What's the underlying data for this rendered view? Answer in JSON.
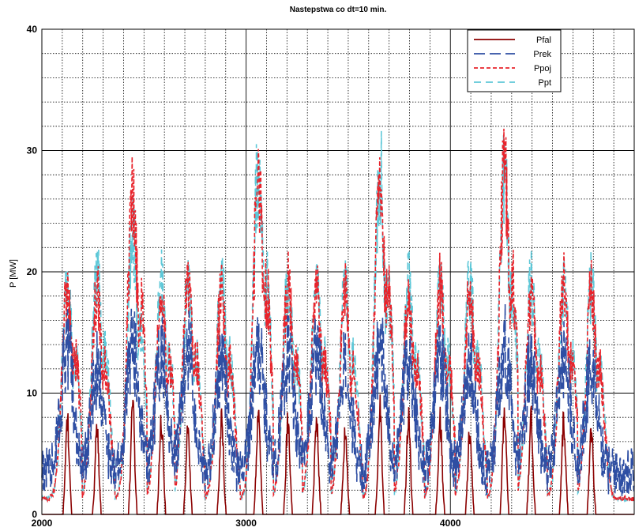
{
  "chart_data": {
    "type": "line",
    "title": "Nastepstwa co dt=10 min.",
    "xlabel": "",
    "ylabel": "P [MW]",
    "xlim": [
      2000,
      4900
    ],
    "ylim": [
      0,
      40
    ],
    "x_ticks": [
      "2000",
      "3000",
      "4000"
    ],
    "y_ticks": [
      "0",
      "10",
      "20",
      "30",
      "40"
    ],
    "grid": true,
    "legend_position": "top-right",
    "day_peaks": {
      "x": [
        2125,
        2270,
        2445,
        2585,
        2715,
        2880,
        3060,
        3205,
        3345,
        3485,
        3655,
        3795,
        3950,
        4095,
        4265,
        4395,
        4555,
        4690
      ],
      "Pfal": [
        9,
        8,
        10,
        9,
        8,
        9,
        10,
        9,
        9,
        8,
        10,
        9,
        9,
        8,
        10,
        9,
        9,
        8
      ],
      "Prek": [
        16,
        14,
        16,
        15,
        16,
        14,
        16,
        15,
        15,
        14,
        16,
        15,
        15,
        14,
        16,
        14,
        15,
        14
      ],
      "Ppoj": [
        22,
        21,
        30,
        21,
        22,
        21,
        32,
        22,
        21,
        21,
        32,
        21,
        22,
        21,
        33,
        21,
        22,
        21
      ],
      "Ppt": [
        22,
        23,
        27,
        22,
        22,
        22,
        33,
        22,
        22,
        22,
        33,
        22,
        22,
        22,
        32,
        22,
        22,
        22
      ]
    },
    "series": [
      {
        "name": "Pfal",
        "color": "#8b0000",
        "style": "solid"
      },
      {
        "name": "Prek",
        "color": "#2e4ea3",
        "style": "long-dash"
      },
      {
        "name": "Ppoj",
        "color": "#e8232b",
        "style": "short-dash"
      },
      {
        "name": "Ppt",
        "color": "#5ec8d8",
        "style": "dash"
      }
    ]
  }
}
